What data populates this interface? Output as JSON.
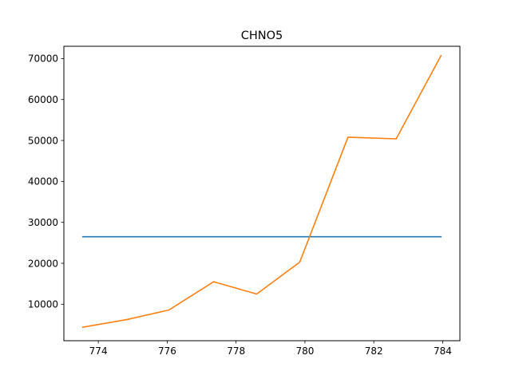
{
  "chart_data": {
    "type": "line",
    "title": "CHNO5",
    "xlabel": "",
    "ylabel": "",
    "xlim": [
      773.0,
      784.5
    ],
    "ylim": [
      1100,
      73000
    ],
    "xticks": [
      774,
      776,
      778,
      780,
      782,
      784
    ],
    "yticks": [
      10000,
      20000,
      30000,
      40000,
      50000,
      60000,
      70000
    ],
    "grid": false,
    "series": [
      {
        "color": "#1f77b4",
        "x": [
          773.55,
          783.95
        ],
        "y": [
          26500,
          26500
        ]
      },
      {
        "color": "#ff7f0e",
        "x": [
          773.55,
          774.85,
          776.05,
          777.35,
          778.6,
          779.85,
          781.25,
          782.65,
          783.95
        ],
        "y": [
          4400,
          6300,
          8600,
          15500,
          12500,
          20300,
          50800,
          50400,
          70700
        ]
      }
    ]
  }
}
